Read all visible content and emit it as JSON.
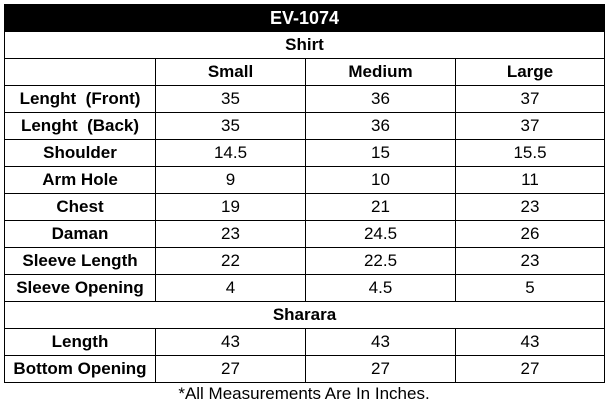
{
  "title": "EV-1074",
  "columns": [
    "Small",
    "Medium",
    "Large"
  ],
  "sections": [
    {
      "name": "Shirt",
      "rows": [
        {
          "label": "Lenght  (Front)",
          "values": [
            35,
            36,
            37
          ]
        },
        {
          "label": "Lenght  (Back)",
          "values": [
            35,
            36,
            37
          ]
        },
        {
          "label": "Shoulder",
          "values": [
            14.5,
            15,
            15.5
          ]
        },
        {
          "label": "Arm Hole",
          "values": [
            9,
            10,
            11
          ]
        },
        {
          "label": "Chest",
          "values": [
            19,
            21,
            23
          ]
        },
        {
          "label": "Daman",
          "values": [
            23,
            24.5,
            26
          ]
        },
        {
          "label": "Sleeve Length",
          "values": [
            22,
            22.5,
            23
          ]
        },
        {
          "label": "Sleeve Opening",
          "values": [
            4,
            4.5,
            5
          ]
        }
      ]
    },
    {
      "name": "Sharara",
      "rows": [
        {
          "label": "Length",
          "values": [
            43,
            43,
            43
          ]
        },
        {
          "label": "Bottom Opening",
          "values": [
            27,
            27,
            27
          ]
        }
      ]
    }
  ],
  "footnote": "*All Measurements Are In Inches."
}
